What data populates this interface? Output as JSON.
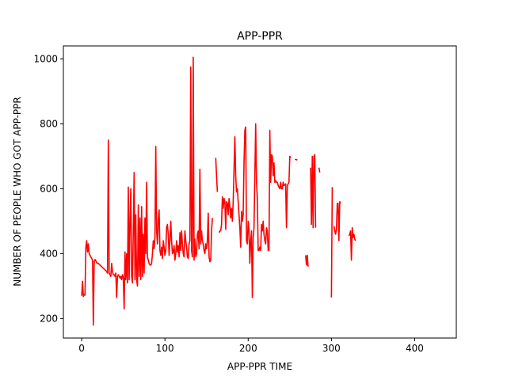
{
  "chart_data": {
    "type": "line",
    "title": "APP-PPR",
    "xlabel": "APP-PPR TIME",
    "ylabel": "NUMBER OF PEOPLE WHO GOT APP-PPR",
    "xlim": [
      -22,
      450
    ],
    "ylim": [
      140,
      1040
    ],
    "xticks": [
      0,
      100,
      200,
      300,
      400
    ],
    "yticks": [
      200,
      400,
      600,
      800,
      1000
    ],
    "grid": false,
    "legend": "none",
    "series": [
      {
        "color": "#ff0000",
        "segments": [
          [
            [
              0,
              270
            ],
            [
              1,
              315
            ],
            [
              2,
              268
            ],
            [
              3,
              275
            ],
            [
              4,
              272
            ],
            [
              5,
              420
            ],
            [
              6,
              440
            ],
            [
              7,
              405
            ],
            [
              8,
              430
            ],
            [
              9,
              400
            ],
            [
              10,
              395
            ],
            [
              11,
              390
            ],
            [
              12,
              385
            ],
            [
              13,
              380
            ],
            [
              14,
              180
            ],
            [
              15,
              375
            ],
            [
              16,
              382
            ],
            [
              17,
              378
            ],
            [
              18,
              372
            ],
            [
              20,
              370
            ],
            [
              22,
              365
            ],
            [
              24,
              360
            ],
            [
              26,
              355
            ],
            [
              28,
              350
            ],
            [
              30,
              345
            ],
            [
              31,
              340
            ],
            [
              32,
              750
            ],
            [
              33,
              340
            ],
            [
              34,
              335
            ],
            [
              35,
              330
            ],
            [
              36,
              370
            ],
            [
              37,
              345
            ],
            [
              38,
              335
            ],
            [
              39,
              335
            ],
            [
              40,
              330
            ],
            [
              41,
              340
            ],
            [
              42,
              265
            ],
            [
              43,
              330
            ],
            [
              44,
              335
            ],
            [
              45,
              330
            ],
            [
              46,
              325
            ],
            [
              47,
              330
            ],
            [
              48,
              320
            ],
            [
              49,
              335
            ],
            [
              50,
              325
            ],
            [
              51,
              230
            ],
            [
              52,
              405
            ],
            [
              53,
              320
            ],
            [
              54,
              400
            ],
            [
              55,
              310
            ],
            [
              56,
              605
            ],
            [
              57,
              320
            ],
            [
              58,
              500
            ],
            [
              59,
              600
            ],
            [
              60,
              330
            ],
            [
              61,
              310
            ],
            [
              62,
              470
            ],
            [
              63,
              650
            ],
            [
              64,
              320
            ],
            [
              65,
              520
            ],
            [
              66,
              320
            ],
            [
              67,
              300
            ],
            [
              68,
              550
            ],
            [
              69,
              330
            ],
            [
              70,
              510
            ],
            [
              71,
              320
            ],
            [
              72,
              545
            ],
            [
              73,
              330
            ],
            [
              74,
              460
            ],
            [
              75,
              340
            ],
            [
              76,
              510
            ],
            [
              77,
              400
            ],
            [
              78,
              620
            ],
            [
              79,
              390
            ],
            [
              80,
              380
            ],
            [
              81,
              370
            ],
            [
              82,
              365
            ],
            [
              83,
              365
            ],
            [
              84,
              370
            ],
            [
              85,
              400
            ],
            [
              86,
              440
            ],
            [
              87,
              415
            ],
            [
              88,
              450
            ],
            [
              89,
              730
            ],
            [
              90,
              470
            ],
            [
              91,
              430
            ],
            [
              92,
              505
            ],
            [
              93,
              535
            ],
            [
              94,
              410
            ],
            [
              95,
              395
            ],
            [
              96,
              420
            ],
            [
              97,
              385
            ],
            [
              98,
              440
            ],
            [
              99,
              420
            ],
            [
              100,
              395
            ],
            [
              101,
              410
            ],
            [
              102,
              480
            ],
            [
              103,
              490
            ],
            [
              104,
              460
            ],
            [
              105,
              395
            ],
            [
              106,
              440
            ],
            [
              107,
              500
            ],
            [
              108,
              440
            ],
            [
              109,
              400
            ],
            [
              110,
              405
            ],
            [
              111,
              425
            ],
            [
              112,
              380
            ],
            [
              113,
              400
            ],
            [
              114,
              440
            ],
            [
              115,
              405
            ],
            [
              116,
              425
            ],
            [
              117,
              390
            ],
            [
              118,
              465
            ],
            [
              119,
              410
            ],
            [
              120,
              470
            ],
            [
              121,
              430
            ],
            [
              122,
              400
            ],
            [
              123,
              390
            ],
            [
              124,
              470
            ],
            [
              125,
              440
            ],
            [
              126,
              420
            ],
            [
              127,
              390
            ],
            [
              128,
              385
            ],
            [
              129,
              430
            ],
            [
              130,
              440
            ],
            [
              131,
              975
            ],
            [
              132,
              410
            ],
            [
              133,
              390
            ],
            [
              134,
              1005
            ],
            [
              135,
              380
            ],
            [
              136,
              445
            ],
            [
              137,
              390
            ],
            [
              138,
              400
            ],
            [
              139,
              460
            ],
            [
              140,
              470
            ],
            [
              141,
              415
            ],
            [
              142,
              660
            ],
            [
              143,
              430
            ],
            [
              144,
              470
            ],
            [
              145,
              440
            ],
            [
              146,
              430
            ],
            [
              147,
              410
            ],
            [
              148,
              400
            ],
            [
              149,
              430
            ],
            [
              150,
              415
            ],
            [
              151,
              440
            ],
            [
              152,
              525
            ],
            [
              153,
              390
            ],
            [
              154,
              375
            ],
            [
              155,
              380
            ],
            [
              156,
              470
            ],
            [
              157,
              510
            ]
          ],
          [
            [
              161,
              695
            ],
            [
              162,
              640
            ],
            [
              163,
              590
            ]
          ],
          [
            [
              165,
              465
            ],
            [
              166,
              470
            ],
            [
              167,
              470
            ],
            [
              168,
              490
            ],
            [
              169,
              575
            ],
            [
              170,
              540
            ],
            [
              171,
              570
            ],
            [
              172,
              560
            ],
            [
              173,
              475
            ],
            [
              174,
              560
            ],
            [
              175,
              555
            ],
            [
              176,
              520
            ],
            [
              177,
              570
            ],
            [
              178,
              545
            ],
            [
              179,
              510
            ],
            [
              180,
              540
            ],
            [
              181,
              500
            ],
            [
              182,
              560
            ],
            [
              183,
              660
            ],
            [
              184,
              760
            ],
            [
              185,
              640
            ],
            [
              186,
              590
            ],
            [
              187,
              600
            ],
            [
              188,
              560
            ],
            [
              189,
              520
            ],
            [
              190,
              480
            ],
            [
              191,
              420
            ],
            [
              192,
              530
            ],
            [
              193,
              500
            ],
            [
              194,
              520
            ],
            [
              195,
              680
            ],
            [
              196,
              780
            ],
            [
              197,
              790
            ],
            [
              198,
              440
            ],
            [
              199,
              430
            ],
            [
              200,
              500
            ],
            [
              201,
              470
            ],
            [
              202,
              370
            ],
            [
              203,
              440
            ],
            [
              204,
              470
            ],
            [
              205,
              265
            ],
            [
              206,
              450
            ],
            [
              207,
              480
            ],
            [
              208,
              640
            ],
            [
              209,
              800
            ],
            [
              210,
              620
            ],
            [
              211,
              570
            ],
            [
              212,
              410
            ],
            [
              213,
              410
            ],
            [
              214,
              420
            ],
            [
              215,
              410
            ],
            [
              216,
              490
            ],
            [
              217,
              470
            ],
            [
              218,
              500
            ],
            [
              219,
              460
            ],
            [
              220,
              440
            ],
            [
              221,
              430
            ],
            [
              222,
              480
            ],
            [
              223,
              470
            ],
            [
              224,
              410
            ],
            [
              225,
              410
            ],
            [
              226,
              780
            ],
            [
              227,
              620
            ],
            [
              228,
              705
            ],
            [
              229,
              700
            ],
            [
              230,
              640
            ],
            [
              231,
              680
            ],
            [
              232,
              620
            ],
            [
              233,
              625
            ],
            [
              234,
              620
            ],
            [
              235,
              620
            ],
            [
              236,
              610
            ],
            [
              237,
              605
            ],
            [
              238,
              600
            ],
            [
              239,
              620
            ],
            [
              240,
              600
            ],
            [
              241,
              600
            ],
            [
              242,
              620
            ],
            [
              243,
              610
            ],
            [
              244,
              612
            ],
            [
              245,
              615
            ],
            [
              246,
              480
            ],
            [
              247,
              610
            ],
            [
              248,
              615
            ],
            [
              249,
              620
            ],
            [
              250,
              700
            ],
            [
              251,
              695
            ]
          ],
          [
            [
              256,
              690
            ],
            [
              257,
              690
            ],
            [
              258,
              690
            ],
            [
              259,
              688
            ]
          ],
          [
            [
              269,
              395
            ],
            [
              270,
              365
            ],
            [
              271,
              395
            ],
            [
              272,
              360
            ]
          ],
          [
            [
              275,
              665
            ],
            [
              276,
              490
            ],
            [
              277,
              700
            ],
            [
              278,
              480
            ],
            [
              279,
              700
            ],
            [
              280,
              705
            ],
            [
              281,
              480
            ]
          ],
          [
            [
              285,
              665
            ],
            [
              286,
              650
            ]
          ],
          [
            [
              300,
              265
            ],
            [
              301,
              605
            ]
          ],
          [
            [
              303,
              485
            ],
            [
              304,
              470
            ],
            [
              305,
              460
            ],
            [
              306,
              475
            ],
            [
              307,
              555
            ],
            [
              308,
              555
            ],
            [
              309,
              440
            ],
            [
              310,
              560
            ],
            [
              311,
              555
            ]
          ],
          [
            [
              321,
              455
            ],
            [
              322,
              460
            ],
            [
              323,
              470
            ],
            [
              324,
              380
            ],
            [
              325,
              480
            ],
            [
              326,
              450
            ],
            [
              327,
              460
            ],
            [
              328,
              445
            ],
            [
              329,
              440
            ]
          ]
        ]
      }
    ]
  }
}
